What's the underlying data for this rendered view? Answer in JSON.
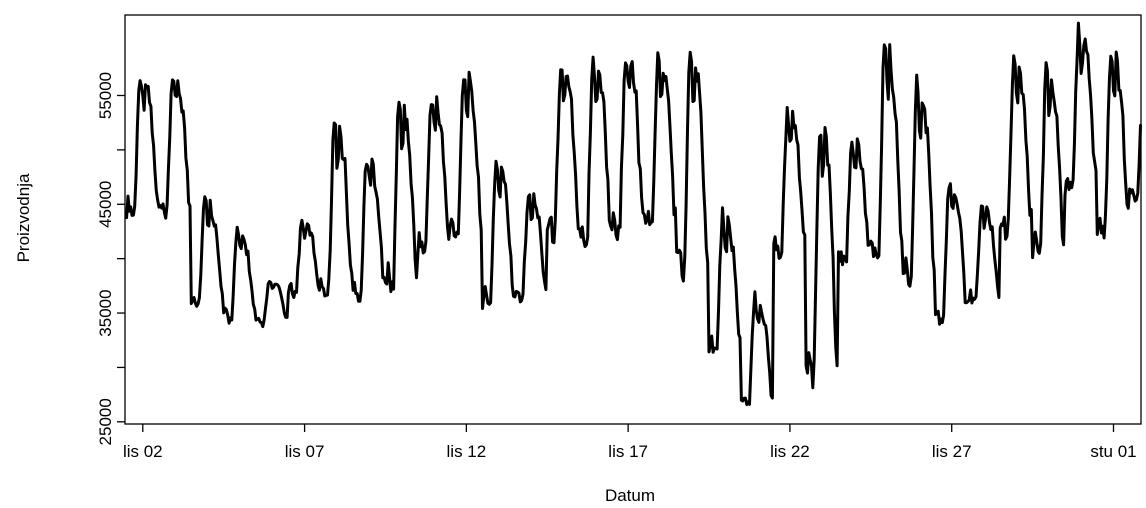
{
  "chart_data": {
    "type": "line",
    "xlabel": "Datum",
    "ylabel": "Proizvodnja",
    "x_tick_labels": [
      "lis 02",
      "lis 07",
      "lis 12",
      "lis 17",
      "lis 22",
      "lis 27",
      "stu 01"
    ],
    "y_tick_labels": [
      "25000",
      "35000",
      "45000",
      "55000"
    ],
    "y_ticks": [
      25000,
      30000,
      35000,
      40000,
      45000,
      50000,
      55000
    ],
    "ylim": [
      24800,
      62400
    ],
    "xlim_days": [
      0.45,
      31.85
    ],
    "line_color": "#000000",
    "grid": false,
    "legend": "none",
    "series": [
      {
        "x_unit": "days from lis 01 00:00",
        "daily_peak_estimates": [
          {
            "day": "lis 01",
            "peak": 57200,
            "trough": 43500
          },
          {
            "day": "lis 02",
            "peak": 57000,
            "trough": 43000
          },
          {
            "day": "lis 03",
            "peak": 45500,
            "trough": 35500
          },
          {
            "day": "lis 04",
            "peak": 42500,
            "trough": 34000
          },
          {
            "day": "lis 05",
            "peak": 38000,
            "trough": 33800
          },
          {
            "day": "lis 06",
            "peak": 43500,
            "trough": 36500
          },
          {
            "day": "lis 07",
            "peak": 52500,
            "trough": 36000
          },
          {
            "day": "lis 08",
            "peak": 49500,
            "trough": 36000
          },
          {
            "day": "lis 09",
            "peak": 54500,
            "trough": 36500
          },
          {
            "day": "lis 10",
            "peak": 55000,
            "trough": 40000
          },
          {
            "day": "lis 11",
            "peak": 57000,
            "trough": 41500
          },
          {
            "day": "lis 12",
            "peak": 49000,
            "trough": 35000
          },
          {
            "day": "lis 13",
            "peak": 46000,
            "trough": 36000
          },
          {
            "day": "lis 14",
            "peak": 58000,
            "trough": 41500
          },
          {
            "day": "lis 15",
            "peak": 58500,
            "trough": 41000
          },
          {
            "day": "lis 16",
            "peak": 59000,
            "trough": 41500
          },
          {
            "day": "lis 17",
            "peak": 58500,
            "trough": 42000
          },
          {
            "day": "lis 18",
            "peak": 59000,
            "trough": 38000
          },
          {
            "day": "lis 19",
            "peak": 44000,
            "trough": 31000
          },
          {
            "day": "lis 20",
            "peak": 36500,
            "trough": 25800
          },
          {
            "day": "lis 21",
            "peak": 53500,
            "trough": 40000
          },
          {
            "day": "lis 22",
            "peak": 52500,
            "trough": 27500
          },
          {
            "day": "lis 23",
            "peak": 51000,
            "trough": 39000
          },
          {
            "day": "lis 24",
            "peak": 59500,
            "trough": 39000
          },
          {
            "day": "lis 25",
            "peak": 56000,
            "trough": 37000
          },
          {
            "day": "lis 26",
            "peak": 47000,
            "trough": 33500
          },
          {
            "day": "lis 27",
            "peak": 45000,
            "trough": 35500
          },
          {
            "day": "lis 28",
            "peak": 58000,
            "trough": 41500
          },
          {
            "day": "lis 29",
            "peak": 57500,
            "trough": 39500
          },
          {
            "day": "lis 30",
            "peak": 61000,
            "trough": 45500
          },
          {
            "day": "lis 31",
            "peak": 59000,
            "trough": 41500
          },
          {
            "day": "stu 01",
            "peak": 56500,
            "trough": 45000
          }
        ]
      }
    ]
  }
}
